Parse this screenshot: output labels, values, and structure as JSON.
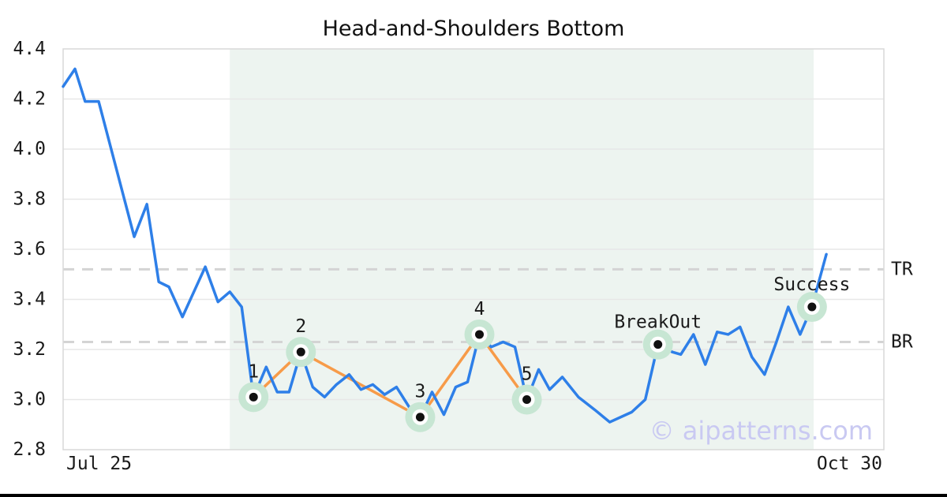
{
  "chart_data": {
    "type": "line",
    "title": "Head-and-Shoulders Bottom",
    "xlabel": "",
    "ylabel": "",
    "watermark": "© aipatterns.com",
    "x_axis": {
      "tick_labels": [
        "Jul 25",
        "Oct 30"
      ],
      "tick_days": [
        0,
        97
      ],
      "xlim": [
        0,
        97
      ]
    },
    "y_axis": {
      "ticks": [
        2.8,
        3.0,
        3.2,
        3.4,
        3.6,
        3.8,
        4.0,
        4.2,
        4.4
      ],
      "ylim": [
        2.8,
        4.4
      ]
    },
    "grid": "horizontal",
    "price_series": {
      "name": "price",
      "x": [
        0,
        1.4,
        2.6,
        4.2,
        8.4,
        9.9,
        11.3,
        12.5,
        14.1,
        16.8,
        18.3,
        19.7,
        21.1,
        22.5,
        24,
        25.3,
        26.7,
        28.1,
        29.5,
        30.9,
        32.3,
        33.8,
        35.2,
        36.6,
        38,
        39.4,
        40.9,
        42.2,
        43.6,
        45,
        46.4,
        47.8,
        49.2,
        50.6,
        52,
        53.4,
        54.8,
        56.2,
        57.5,
        59,
        60.9,
        62.8,
        64.6,
        67.2,
        68.8,
        70.3,
        72,
        73,
        74.5,
        75.9,
        77.3,
        78.6,
        80,
        81.4,
        82.9,
        84.3,
        85.7,
        87.1,
        88.5,
        90.2
      ],
      "y": [
        4.25,
        4.32,
        4.19,
        4.19,
        3.65,
        3.78,
        3.47,
        3.45,
        3.33,
        3.53,
        3.39,
        3.43,
        3.37,
        3.01,
        3.13,
        3.03,
        3.03,
        3.19,
        3.05,
        3.01,
        3.06,
        3.1,
        3.04,
        3.06,
        3.02,
        3.05,
        2.97,
        2.93,
        3.03,
        2.94,
        3.05,
        3.07,
        3.26,
        3.21,
        3.23,
        3.21,
        3.0,
        3.12,
        3.04,
        3.09,
        3.01,
        2.96,
        2.91,
        2.95,
        3.0,
        3.22,
        3.19,
        3.18,
        3.26,
        3.14,
        3.27,
        3.26,
        3.29,
        3.17,
        3.1,
        3.23,
        3.37,
        3.26,
        3.37,
        3.58
      ]
    },
    "pattern_points": [
      {
        "label": "1",
        "day": 22.5,
        "value": 3.01
      },
      {
        "label": "2",
        "day": 28.1,
        "value": 3.19
      },
      {
        "label": "3",
        "day": 42.2,
        "value": 2.93
      },
      {
        "label": "4",
        "day": 49.2,
        "value": 3.26
      },
      {
        "label": "5",
        "day": 54.8,
        "value": 3.0
      }
    ],
    "event_points": [
      {
        "label": "BreakOut",
        "day": 70.3,
        "value": 3.22
      },
      {
        "label": "Success",
        "day": 88.5,
        "value": 3.37
      }
    ],
    "hlines": [
      {
        "label": "TR",
        "value": 3.52
      },
      {
        "label": "BR",
        "value": 3.23
      }
    ],
    "shaded_region": {
      "from_day": 19.7,
      "to_day": 88.7
    },
    "colors": {
      "price_line": "#2e7fe8",
      "pattern_line": "#f79b49",
      "marker_halo": "#c7e6d3",
      "marker_ring": "#ffffff",
      "marker_dot": "#111111",
      "region_fill": "#edf4f0",
      "gridline": "#e7e7e7",
      "dashed_line": "#d4d4d4",
      "axis_border": "#d9d9d9",
      "text": "#1a1a1a",
      "watermark": "#c9c9f2",
      "footer_bar": "#000000"
    }
  }
}
